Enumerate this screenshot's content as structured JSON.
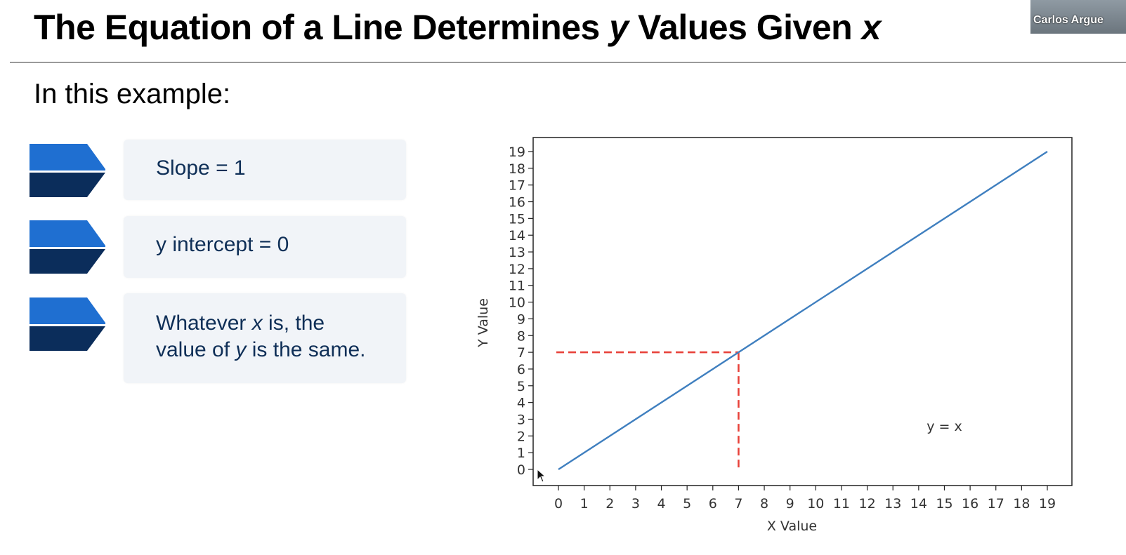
{
  "slide": {
    "title_parts": {
      "a": "The Equation of a Line Determines ",
      "b": "y",
      "c": " Values Given ",
      "d": "x"
    },
    "intro": "In this example:",
    "presenter_name": "Carlos Argue"
  },
  "bullets": [
    {
      "text": "Slope = 1"
    },
    {
      "text": "y intercept = 0"
    },
    {
      "line1_a": "Whatever ",
      "line1_b": "x",
      "line1_c": " is, the",
      "line2_a": "value of ",
      "line2_b": "y",
      "line2_c": " is the same."
    }
  ],
  "colors": {
    "chevron_top": "#1f6fd1",
    "chevron_bottom": "#0b2d5b",
    "line": "#3f7fbf",
    "guide": "#e8433b",
    "card_bg": "#f1f4f8",
    "card_text": "#0f2f57"
  },
  "chart_data": {
    "type": "line",
    "x": [
      0,
      19
    ],
    "series": [
      {
        "values": [
          0,
          19
        ]
      }
    ],
    "xlabel": "X Value",
    "ylabel": "Y Value",
    "xlim": [
      0,
      19
    ],
    "ylim": [
      0,
      19
    ],
    "xticks": [
      "0",
      "1",
      "2",
      "3",
      "4",
      "5",
      "6",
      "7",
      "8",
      "9",
      "10",
      "11",
      "12",
      "13",
      "14",
      "15",
      "16",
      "17",
      "18",
      "19"
    ],
    "yticks": [
      "0",
      "1",
      "2",
      "3",
      "4",
      "5",
      "6",
      "7",
      "8",
      "9",
      "10",
      "11",
      "12",
      "13",
      "14",
      "15",
      "16",
      "17",
      "18",
      "19"
    ],
    "annotation": {
      "text": "y = x",
      "x": 15,
      "y": 2.3
    },
    "guide_point": {
      "x": 7,
      "y": 7
    },
    "grid": false,
    "legend": "none"
  }
}
